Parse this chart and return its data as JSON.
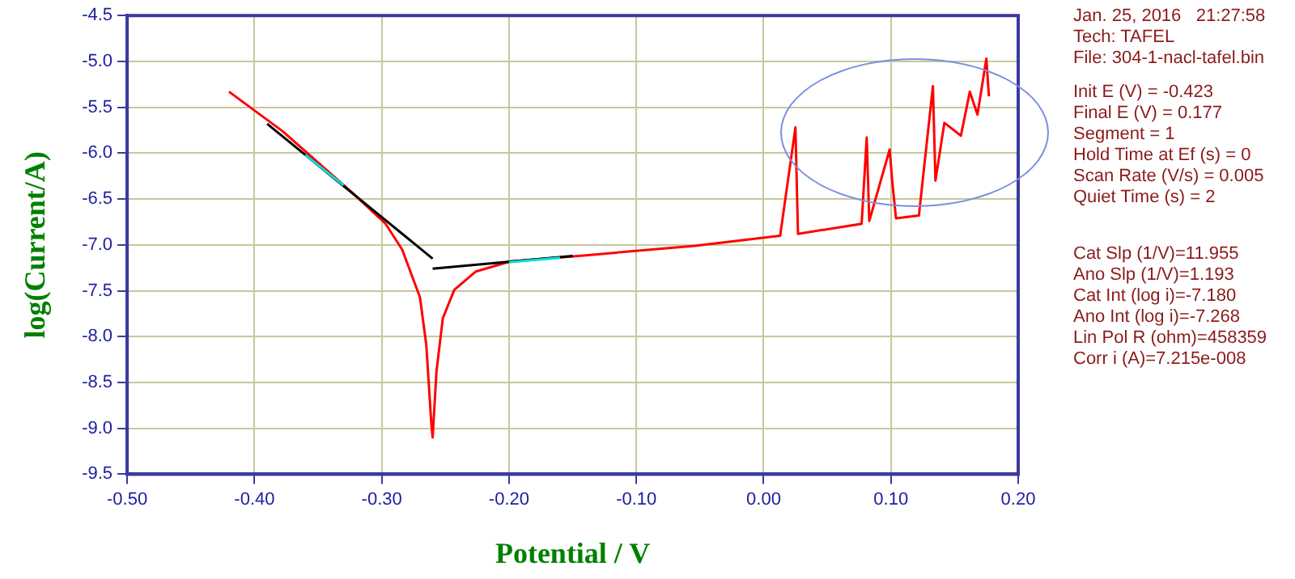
{
  "chart_data": {
    "type": "line",
    "xlabel": "Potential / V",
    "ylabel": "log(Current/A)",
    "xlim": [
      -0.5,
      0.2
    ],
    "xticks": [
      {
        "value": -0.5,
        "label": "-0.50"
      },
      {
        "value": -0.4,
        "label": "-0.40"
      },
      {
        "value": -0.3,
        "label": "-0.30"
      },
      {
        "value": -0.2,
        "label": "-0.20"
      },
      {
        "value": -0.1,
        "label": "-0.10"
      },
      {
        "value": 0,
        "label": "0.00"
      },
      {
        "value": 0.1,
        "label": "0.10"
      },
      {
        "value": 0.2,
        "label": "0.20"
      }
    ],
    "ylim": [
      -9.5,
      -4.5
    ],
    "yticks": [
      -9.5,
      {
        "value": -9,
        "label": "-9.0"
      },
      -8.5,
      {
        "value": -8,
        "label": "-8.0"
      },
      -7.5,
      {
        "value": -7,
        "label": "-7.0"
      },
      -6.5,
      {
        "value": -6,
        "label": "-6.0"
      },
      -5.5,
      {
        "value": -5,
        "label": "-5.0"
      },
      -4.5
    ],
    "grid": true,
    "legend": false,
    "marker": "none",
    "line_style": "solid",
    "series": [
      {
        "color": "#ff0000",
        "x": [
          -0.42,
          -0.378,
          -0.324,
          -0.297,
          -0.284,
          -0.27,
          -0.265,
          -0.261,
          -0.26,
          -0.257,
          -0.252,
          -0.243,
          -0.226,
          -0.199,
          -0.145,
          -0.054,
          0.013,
          0.025,
          0.027,
          0.077,
          0.081,
          0.083,
          0.099,
          0.101,
          0.104,
          0.122,
          0.133,
          0.135,
          0.142,
          0.155,
          0.162,
          0.168,
          0.175,
          0.177
        ],
        "values": [
          -5.33,
          -5.76,
          -6.42,
          -6.77,
          -7.05,
          -7.57,
          -8.09,
          -8.96,
          -9.1,
          -8.38,
          -7.8,
          -7.49,
          -7.29,
          -7.18,
          -7.12,
          -7.01,
          -6.9,
          -5.72,
          -6.88,
          -6.77,
          -5.83,
          -6.74,
          -5.96,
          -6.3,
          -6.71,
          -6.68,
          -5.27,
          -6.3,
          -5.67,
          -5.81,
          -5.33,
          -5.58,
          -4.97,
          -5.38
        ]
      },
      {
        "color": "#000000",
        "x": [
          -0.39,
          -0.26
        ],
        "values": [
          -5.68,
          -7.15
        ]
      },
      {
        "color": "#000000",
        "x": [
          -0.26,
          -0.15
        ],
        "values": [
          -7.26,
          -7.12
        ]
      },
      {
        "color": "#00e0e0",
        "x": [
          -0.36,
          -0.33
        ],
        "values": [
          -6.02,
          -6.35
        ]
      },
      {
        "color": "#00e0e0",
        "x": [
          -0.2,
          -0.16
        ],
        "values": [
          -7.19,
          -7.14
        ]
      }
    ],
    "annotations": [
      "Jan. 25, 2016   21:27:58",
      "Tech: TAFEL",
      "File: 304-1-nacl-tafel.bin",
      "Init E (V) = -0.423",
      "Final E (V) = 0.177",
      "Segment = 1",
      "Hold Time at Ef (s) = 0",
      "Scan Rate (V/s) = 0.005",
      "Quiet Time (s) = 2",
      "Cat Slp (1/V)=11.955",
      "Ano Slp (1/V)=1.193",
      "Cat Int (log i)=-7.180",
      "Ano Int (log i)=-7.268",
      "Lin Pol R (ohm)=458359",
      "Corr i (A)=7.215e-008"
    ]
  }
}
